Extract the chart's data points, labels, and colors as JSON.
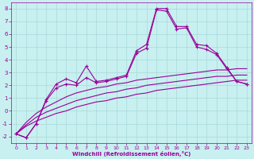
{
  "xlabel": "Windchill (Refroidissement éolien,°C)",
  "bg_color": "#c8f0f0",
  "grid_color": "#a8d8d8",
  "line_color": "#990099",
  "x_values": [
    0,
    1,
    2,
    3,
    4,
    5,
    6,
    7,
    8,
    9,
    10,
    11,
    12,
    13,
    14,
    15,
    16,
    17,
    18,
    19,
    20,
    21,
    22,
    23
  ],
  "spiky1": [
    -1.8,
    -2.1,
    -1.0,
    0.9,
    2.1,
    2.5,
    2.2,
    3.5,
    2.3,
    2.4,
    2.6,
    2.8,
    4.7,
    5.2,
    8.0,
    8.0,
    6.6,
    6.6,
    5.2,
    5.1,
    4.5,
    3.4,
    2.3,
    2.1
  ],
  "spiky2": [
    -1.8,
    -2.1,
    -1.0,
    0.8,
    1.8,
    2.1,
    2.0,
    2.6,
    2.2,
    2.3,
    2.5,
    2.7,
    4.5,
    4.9,
    7.9,
    7.8,
    6.4,
    6.5,
    5.0,
    4.8,
    4.4,
    3.3,
    2.3,
    2.1
  ],
  "smooth1": [
    -1.8,
    -0.9,
    -0.2,
    0.3,
    0.7,
    1.1,
    1.4,
    1.6,
    1.8,
    1.9,
    2.1,
    2.2,
    2.4,
    2.5,
    2.6,
    2.7,
    2.8,
    2.9,
    3.0,
    3.1,
    3.2,
    3.2,
    3.3,
    3.3
  ],
  "smooth2": [
    -1.8,
    -1.1,
    -0.5,
    -0.1,
    0.2,
    0.5,
    0.8,
    1.0,
    1.2,
    1.4,
    1.5,
    1.7,
    1.8,
    2.0,
    2.1,
    2.2,
    2.3,
    2.4,
    2.5,
    2.6,
    2.7,
    2.7,
    2.8,
    2.8
  ],
  "smooth3": [
    -1.8,
    -1.2,
    -0.8,
    -0.5,
    -0.2,
    0.0,
    0.3,
    0.5,
    0.7,
    0.8,
    1.0,
    1.1,
    1.3,
    1.4,
    1.6,
    1.7,
    1.8,
    1.9,
    2.0,
    2.1,
    2.2,
    2.3,
    2.4,
    2.4
  ],
  "ylim": [
    -2.5,
    8.5
  ],
  "xlim": [
    -0.5,
    23.5
  ],
  "yticks": [
    -2,
    -1,
    0,
    1,
    2,
    3,
    4,
    5,
    6,
    7,
    8
  ],
  "xticks": [
    0,
    1,
    2,
    3,
    4,
    5,
    6,
    7,
    8,
    9,
    10,
    11,
    12,
    13,
    14,
    15,
    16,
    17,
    18,
    19,
    20,
    21,
    22,
    23
  ]
}
